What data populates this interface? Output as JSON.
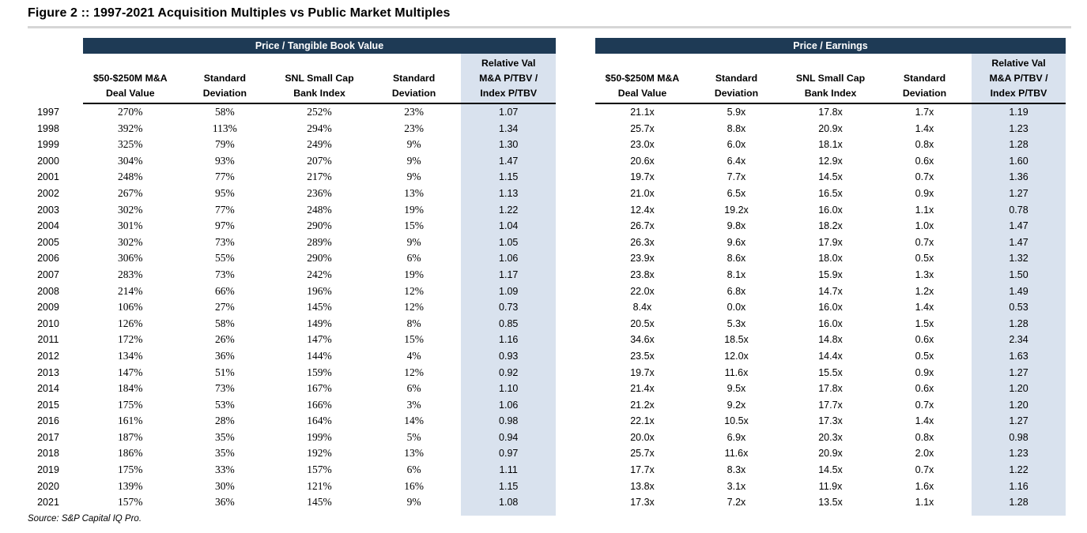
{
  "title": "Figure 2 :: 1997-2021 Acquisition Multiples vs Public Market Multiples",
  "source": "Source: S&P Capital IQ Pro.",
  "colors": {
    "header_bar_navy": "#1e3a55",
    "relative_val_highlight": "#d9e2ee",
    "title_rule_gray": "#d6d6d6"
  },
  "years": [
    "1997",
    "1998",
    "1999",
    "2000",
    "2001",
    "2002",
    "2003",
    "2004",
    "2005",
    "2006",
    "2007",
    "2008",
    "2009",
    "2010",
    "2011",
    "2012",
    "2013",
    "2014",
    "2015",
    "2016",
    "2017",
    "2018",
    "2019",
    "2020",
    "2021"
  ],
  "tables": [
    {
      "group_header": "Price / Tangible Book Value",
      "value_font": "serif",
      "columns": [
        {
          "lines": [
            "$50-$250M M&A",
            "Deal Value"
          ]
        },
        {
          "lines": [
            "Standard",
            "Deviation"
          ]
        },
        {
          "lines": [
            "SNL Small Cap",
            "Bank Index"
          ]
        },
        {
          "lines": [
            "Standard",
            "Deviation"
          ]
        },
        {
          "lines": [
            "Relative Val",
            "M&A P/TBV /",
            "Index P/TBV"
          ],
          "highlight": true
        }
      ],
      "rows": [
        [
          "270%",
          "58%",
          "252%",
          "23%",
          "1.07"
        ],
        [
          "392%",
          "113%",
          "294%",
          "23%",
          "1.34"
        ],
        [
          "325%",
          "79%",
          "249%",
          "9%",
          "1.30"
        ],
        [
          "304%",
          "93%",
          "207%",
          "9%",
          "1.47"
        ],
        [
          "248%",
          "77%",
          "217%",
          "9%",
          "1.15"
        ],
        [
          "267%",
          "95%",
          "236%",
          "13%",
          "1.13"
        ],
        [
          "302%",
          "77%",
          "248%",
          "19%",
          "1.22"
        ],
        [
          "301%",
          "97%",
          "290%",
          "15%",
          "1.04"
        ],
        [
          "302%",
          "73%",
          "289%",
          "9%",
          "1.05"
        ],
        [
          "306%",
          "55%",
          "290%",
          "6%",
          "1.06"
        ],
        [
          "283%",
          "73%",
          "242%",
          "19%",
          "1.17"
        ],
        [
          "214%",
          "66%",
          "196%",
          "12%",
          "1.09"
        ],
        [
          "106%",
          "27%",
          "145%",
          "12%",
          "0.73"
        ],
        [
          "126%",
          "58%",
          "149%",
          "8%",
          "0.85"
        ],
        [
          "172%",
          "26%",
          "147%",
          "15%",
          "1.16"
        ],
        [
          "134%",
          "36%",
          "144%",
          "4%",
          "0.93"
        ],
        [
          "147%",
          "51%",
          "159%",
          "12%",
          "0.92"
        ],
        [
          "184%",
          "73%",
          "167%",
          "6%",
          "1.10"
        ],
        [
          "175%",
          "53%",
          "166%",
          "3%",
          "1.06"
        ],
        [
          "161%",
          "28%",
          "164%",
          "14%",
          "0.98"
        ],
        [
          "187%",
          "35%",
          "199%",
          "5%",
          "0.94"
        ],
        [
          "186%",
          "35%",
          "192%",
          "13%",
          "0.97"
        ],
        [
          "175%",
          "33%",
          "157%",
          "6%",
          "1.11"
        ],
        [
          "139%",
          "30%",
          "121%",
          "16%",
          "1.15"
        ],
        [
          "157%",
          "36%",
          "145%",
          "9%",
          "1.08"
        ]
      ]
    },
    {
      "group_header": "Price / Earnings",
      "value_font": "sans",
      "columns": [
        {
          "lines": [
            "$50-$250M M&A",
            "Deal Value"
          ]
        },
        {
          "lines": [
            "Standard",
            "Deviation"
          ]
        },
        {
          "lines": [
            "SNL Small Cap",
            "Bank Index"
          ]
        },
        {
          "lines": [
            "Standard",
            "Deviation"
          ]
        },
        {
          "lines": [
            "Relative Val",
            "M&A P/TBV /",
            "Index P/TBV"
          ],
          "highlight": true
        }
      ],
      "rows": [
        [
          "21.1x",
          "5.9x",
          "17.8x",
          "1.7x",
          "1.19"
        ],
        [
          "25.7x",
          "8.8x",
          "20.9x",
          "1.4x",
          "1.23"
        ],
        [
          "23.0x",
          "6.0x",
          "18.1x",
          "0.8x",
          "1.28"
        ],
        [
          "20.6x",
          "6.4x",
          "12.9x",
          "0.6x",
          "1.60"
        ],
        [
          "19.7x",
          "7.7x",
          "14.5x",
          "0.7x",
          "1.36"
        ],
        [
          "21.0x",
          "6.5x",
          "16.5x",
          "0.9x",
          "1.27"
        ],
        [
          "12.4x",
          "19.2x",
          "16.0x",
          "1.1x",
          "0.78"
        ],
        [
          "26.7x",
          "9.8x",
          "18.2x",
          "1.0x",
          "1.47"
        ],
        [
          "26.3x",
          "9.6x",
          "17.9x",
          "0.7x",
          "1.47"
        ],
        [
          "23.9x",
          "8.6x",
          "18.0x",
          "0.5x",
          "1.32"
        ],
        [
          "23.8x",
          "8.1x",
          "15.9x",
          "1.3x",
          "1.50"
        ],
        [
          "22.0x",
          "6.8x",
          "14.7x",
          "1.2x",
          "1.49"
        ],
        [
          "8.4x",
          "0.0x",
          "16.0x",
          "1.4x",
          "0.53"
        ],
        [
          "20.5x",
          "5.3x",
          "16.0x",
          "1.5x",
          "1.28"
        ],
        [
          "34.6x",
          "18.5x",
          "14.8x",
          "0.6x",
          "2.34"
        ],
        [
          "23.5x",
          "12.0x",
          "14.4x",
          "0.5x",
          "1.63"
        ],
        [
          "19.7x",
          "11.6x",
          "15.5x",
          "0.9x",
          "1.27"
        ],
        [
          "21.4x",
          "9.5x",
          "17.8x",
          "0.6x",
          "1.20"
        ],
        [
          "21.2x",
          "9.2x",
          "17.7x",
          "0.7x",
          "1.20"
        ],
        [
          "22.1x",
          "10.5x",
          "17.3x",
          "1.4x",
          "1.27"
        ],
        [
          "20.0x",
          "6.9x",
          "20.3x",
          "0.8x",
          "0.98"
        ],
        [
          "25.7x",
          "11.6x",
          "20.9x",
          "2.0x",
          "1.23"
        ],
        [
          "17.7x",
          "8.3x",
          "14.5x",
          "0.7x",
          "1.22"
        ],
        [
          "13.8x",
          "3.1x",
          "11.9x",
          "1.6x",
          "1.16"
        ],
        [
          "17.3x",
          "7.2x",
          "13.5x",
          "1.1x",
          "1.28"
        ]
      ]
    }
  ]
}
